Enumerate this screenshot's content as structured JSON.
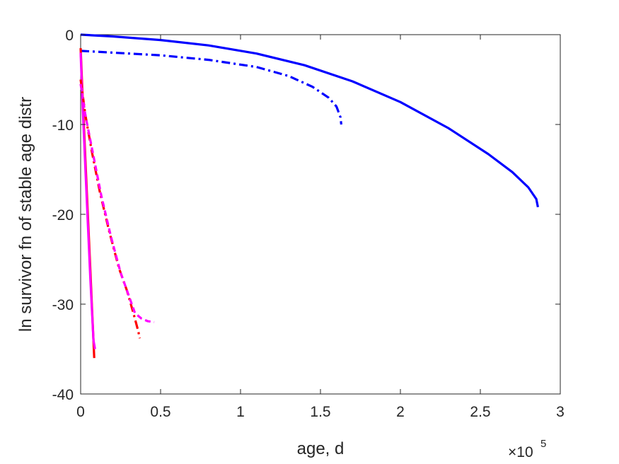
{
  "chart_data": {
    "type": "line",
    "xlabel": "age, d",
    "ylabel": "ln survivor fn of stable age distr",
    "xlim": [
      0,
      300000
    ],
    "ylim": [
      -40,
      0
    ],
    "x_exponent_label": "×10",
    "x_exponent_power": "5",
    "x_ticks": [
      {
        "value": 0,
        "label": "0"
      },
      {
        "value": 50000,
        "label": "0.5"
      },
      {
        "value": 100000,
        "label": "1"
      },
      {
        "value": 150000,
        "label": "1.5"
      },
      {
        "value": 200000,
        "label": "2"
      },
      {
        "value": 250000,
        "label": "2.5"
      },
      {
        "value": 300000,
        "label": "3"
      }
    ],
    "y_ticks": [
      {
        "value": 0,
        "label": "0"
      },
      {
        "value": -10,
        "label": "-10"
      },
      {
        "value": -20,
        "label": "-20"
      },
      {
        "value": -30,
        "label": "-30"
      },
      {
        "value": -40,
        "label": "-40"
      }
    ],
    "grid": false,
    "series": [
      {
        "color": "#0000ff",
        "style": "solid",
        "x": [
          0,
          20000,
          50000,
          80000,
          110000,
          140000,
          170000,
          200000,
          230000,
          255000,
          270000,
          280000,
          285000,
          286000
        ],
        "y": [
          0,
          -0.2,
          -0.6,
          -1.2,
          -2.1,
          -3.4,
          -5.2,
          -7.5,
          -10.4,
          -13.3,
          -15.3,
          -17.0,
          -18.3,
          -19.2
        ]
      },
      {
        "color": "#0000ff",
        "style": "dashdot",
        "x": [
          0,
          20000,
          50000,
          80000,
          110000,
          130000,
          145000,
          155000,
          160000,
          162500,
          163000
        ],
        "y": [
          -1.8,
          -2.0,
          -2.3,
          -2.8,
          -3.6,
          -4.6,
          -5.8,
          -7.0,
          -8.0,
          -9.2,
          -10.0
        ]
      },
      {
        "color": "#ff0000",
        "style": "solid",
        "x": [
          0,
          1000,
          2000,
          4000,
          6000,
          7000,
          8000,
          8500
        ],
        "y": [
          -1.5,
          -6.0,
          -10.0,
          -18.0,
          -26.0,
          -30.0,
          -34.0,
          -36.0
        ]
      },
      {
        "color": "#ff00ff",
        "style": "solid",
        "x": [
          0,
          1000,
          2000,
          4000,
          6000,
          8000,
          9000
        ],
        "y": [
          -2.0,
          -7.0,
          -11.0,
          -19.0,
          -27.0,
          -34.0,
          -35.0
        ]
      },
      {
        "color": "#ff0000",
        "style": "dashdot",
        "x": [
          0,
          3000,
          7000,
          12000,
          18000,
          24000,
          29000,
          33000,
          36000,
          37000
        ],
        "y": [
          -5.0,
          -9.0,
          -13.0,
          -17.5,
          -22.0,
          -26.0,
          -28.5,
          -31.0,
          -33.0,
          -33.8
        ]
      },
      {
        "color": "#ff00ff",
        "style": "dashed",
        "x": [
          0,
          3000,
          8000,
          13000,
          19000,
          25000,
          30000,
          34000,
          38000,
          42000,
          46000
        ],
        "y": [
          -5.5,
          -9.0,
          -13.5,
          -18.0,
          -22.5,
          -26.5,
          -29.0,
          -31.0,
          -31.6,
          -31.9,
          -32.0
        ]
      }
    ]
  }
}
